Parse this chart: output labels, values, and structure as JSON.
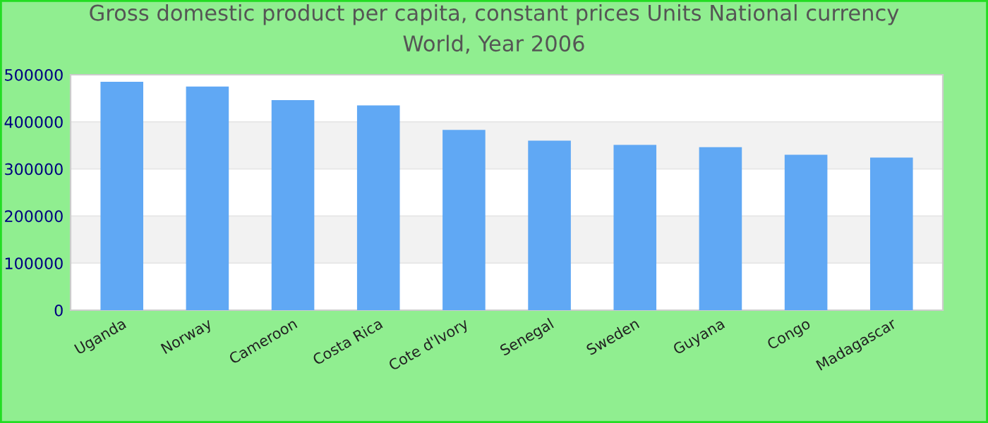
{
  "chart_data": {
    "type": "bar",
    "title": "Gross domestic product per capita, constant prices Units National currency\nWorld, Year 2006",
    "categories": [
      "Uganda",
      "Norway",
      "Cameroon",
      "Costa Rica",
      "Cote d'Ivory",
      "Senegal",
      "Sweden",
      "Guyana",
      "Congo",
      "Madagascar"
    ],
    "values": [
      485000,
      475000,
      446000,
      435000,
      383000,
      360000,
      351000,
      346000,
      330000,
      324000
    ],
    "color": "#60a8f4",
    "ylim": [
      0,
      500000
    ],
    "yticks": [
      0,
      100000,
      200000,
      300000,
      400000,
      500000
    ],
    "grid": "y",
    "legend": false
  }
}
